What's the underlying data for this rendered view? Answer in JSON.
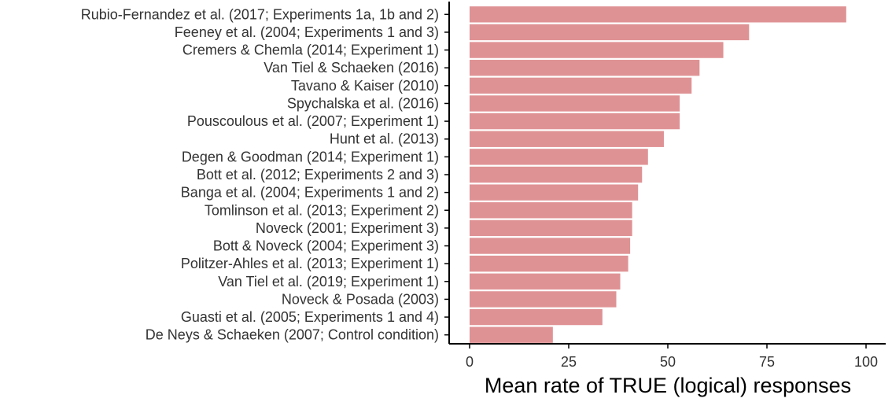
{
  "chart_data": {
    "type": "bar",
    "orientation": "horizontal",
    "categories": [
      "Rubio-Fernandez et al. (2017; Experiments 1a, 1b and 2)",
      "Feeney et al. (2004; Experiments 1 and 3)",
      "Cremers & Chemla (2014; Experiment 1)",
      "Van Tiel & Schaeken (2016)",
      "Tavano & Kaiser (2010)",
      "Spychalska et al. (2016)",
      "Pouscoulous et al. (2007; Experiment 1)",
      "Hunt et al. (2013)",
      "Degen & Goodman (2014; Experiment 1)",
      "Bott et al. (2012; Experiments 2 and 3)",
      "Banga et al. (2004; Experiments 1 and 2)",
      "Tomlinson et al. (2013; Experiment 2)",
      "Noveck (2001; Experiment 3)",
      "Bott & Noveck (2004; Experiment 3)",
      "Politzer-Ahles et al. (2013; Experiment 1)",
      "Van Tiel et al. (2019; Experiment 1)",
      "Noveck & Posada (2003)",
      "Guasti et al. (2005; Experiments 1 and 4)",
      "De Neys & Schaeken (2007; Control condition)"
    ],
    "values": [
      95,
      70.5,
      64,
      58,
      56,
      53,
      53,
      49,
      45,
      43.5,
      42.5,
      41,
      41,
      40.5,
      40,
      38,
      37,
      33.5,
      21
    ],
    "xlabel": "Mean rate of TRUE (logical) responses",
    "ylabel": "",
    "xlim": [
      0,
      100
    ],
    "xticks": [
      0,
      25,
      50,
      75,
      100
    ],
    "grid": false,
    "bar_color": "#df9294",
    "axis_color": "#000000"
  }
}
